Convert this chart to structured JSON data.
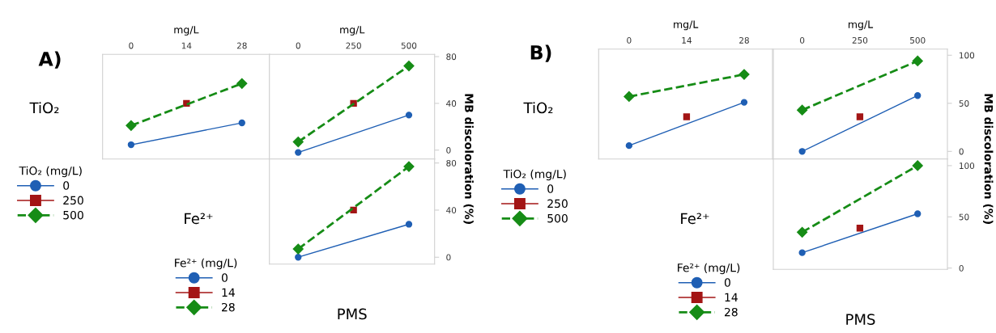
{
  "chart_data": [
    {
      "type": "line",
      "title": "A)",
      "annotations": [
        "TiO₂"
      ],
      "xlabel": "mg/L",
      "xlim": [
        -7.2,
        35
      ],
      "xticks": [
        0,
        14,
        28
      ],
      "ylim": [
        -7.6,
        81.9
      ],
      "tick_labels": "x",
      "legend": "left",
      "legend_title": "TiO₂ (mg/L)",
      "series": [
        {
          "name": "0",
          "color": "#1f5fb4",
          "marker": "circle",
          "line_style": "solid",
          "x": [
            0,
            28
          ],
          "values": [
            4.6,
            23.3
          ]
        },
        {
          "name": "250",
          "color": "#a31515",
          "marker": "square",
          "line_style": "solid",
          "x": [
            14
          ],
          "values": [
            40
          ]
        },
        {
          "name": "500",
          "color": "#168c16",
          "marker": "diamond",
          "line_style": "dashed",
          "x": [
            0,
            28
          ],
          "values": [
            21,
            57
          ]
        }
      ]
    },
    {
      "type": "line",
      "xlabel": "mg/L",
      "xlim": [
        -130,
        616
      ],
      "xticks": [
        0,
        250,
        500
      ],
      "ylim": [
        -7.6,
        81.9
      ],
      "yticks": [
        0,
        40,
        80
      ],
      "ylabel": "MB discoloration (%)",
      "series": [
        {
          "color": "#1f5fb4",
          "marker": "circle",
          "line_style": "solid",
          "x": [
            0,
            500
          ],
          "values": [
            -2,
            30
          ]
        },
        {
          "color": "#a31515",
          "marker": "square",
          "line_style": "solid",
          "x": [
            250
          ],
          "values": [
            40
          ]
        },
        {
          "color": "#168c16",
          "marker": "diamond",
          "line_style": "dashed",
          "x": [
            0,
            500
          ],
          "values": [
            7,
            72
          ]
        }
      ]
    },
    {
      "type": "line",
      "annotations": [
        "Fe²⁺"
      ],
      "xlabel": "PMS",
      "xlim": [
        -130,
        616
      ],
      "ylim": [
        -5.8,
        83.4
      ],
      "yticks": [
        0,
        40,
        80
      ],
      "tick_labels": "y",
      "legend": "left",
      "legend_title": "Fe²⁺ (mg/L)",
      "series": [
        {
          "name": "0",
          "color": "#1f5fb4",
          "marker": "circle",
          "line_style": "solid",
          "x": [
            0,
            500
          ],
          "values": [
            0,
            28
          ]
        },
        {
          "name": "14",
          "color": "#a31515",
          "marker": "square",
          "line_style": "solid",
          "x": [
            250
          ],
          "values": [
            40
          ]
        },
        {
          "name": "28",
          "color": "#168c16",
          "marker": "diamond",
          "line_style": "dashed",
          "x": [
            0,
            500
          ],
          "values": [
            7,
            77
          ]
        }
      ]
    },
    {
      "type": "line",
      "title": "B)",
      "annotations": [
        "TiO₂"
      ],
      "xlabel": "mg/L",
      "xlim": [
        -7.4,
        34.9
      ],
      "xticks": [
        0,
        14,
        28
      ],
      "ylim": [
        -7.9,
        106.4
      ],
      "tick_labels": "x",
      "legend": "left",
      "legend_title": "TiO₂ (mg/L)",
      "series": [
        {
          "name": "0",
          "color": "#1f5fb4",
          "marker": "circle",
          "line_style": "solid",
          "x": [
            0,
            28
          ],
          "values": [
            6,
            51
          ]
        },
        {
          "name": "250",
          "color": "#a31515",
          "marker": "square",
          "line_style": "solid",
          "x": [
            14
          ],
          "values": [
            36
          ]
        },
        {
          "name": "500",
          "color": "#168c16",
          "marker": "diamond",
          "line_style": "dashed",
          "x": [
            0,
            28
          ],
          "values": [
            57,
            80
          ]
        }
      ]
    },
    {
      "type": "line",
      "xlabel": "mg/L",
      "xlim": [
        -125,
        629
      ],
      "xticks": [
        0,
        250,
        500
      ],
      "ylim": [
        -7.9,
        106.4
      ],
      "yticks": [
        0,
        50,
        100
      ],
      "ylabel": "MB discoloration (%)",
      "series": [
        {
          "color": "#1f5fb4",
          "marker": "circle",
          "line_style": "solid",
          "x": [
            0,
            500
          ],
          "values": [
            0,
            58
          ]
        },
        {
          "color": "#a31515",
          "marker": "square",
          "line_style": "solid",
          "x": [
            250
          ],
          "values": [
            36
          ]
        },
        {
          "color": "#168c16",
          "marker": "diamond",
          "line_style": "dashed",
          "x": [
            0,
            500
          ],
          "values": [
            43,
            94
          ]
        }
      ]
    },
    {
      "type": "line",
      "annotations": [
        "Fe²⁺"
      ],
      "xlabel": "PMS",
      "xlim": [
        -125,
        629
      ],
      "ylim": [
        -1.3,
        106.5
      ],
      "yticks": [
        0,
        50,
        100
      ],
      "tick_labels": "y",
      "legend": "left",
      "legend_title": "Fe²⁺ (mg/L)",
      "series": [
        {
          "name": "0",
          "color": "#1f5fb4",
          "marker": "circle",
          "line_style": "solid",
          "x": [
            0,
            500
          ],
          "values": [
            15,
            53
          ]
        },
        {
          "name": "14",
          "color": "#a31515",
          "marker": "square",
          "line_style": "solid",
          "x": [
            250
          ],
          "values": [
            39
          ]
        },
        {
          "name": "28",
          "color": "#168c16",
          "marker": "diamond",
          "line_style": "dashed",
          "x": [
            0,
            500
          ],
          "values": [
            35,
            100
          ]
        }
      ]
    }
  ]
}
